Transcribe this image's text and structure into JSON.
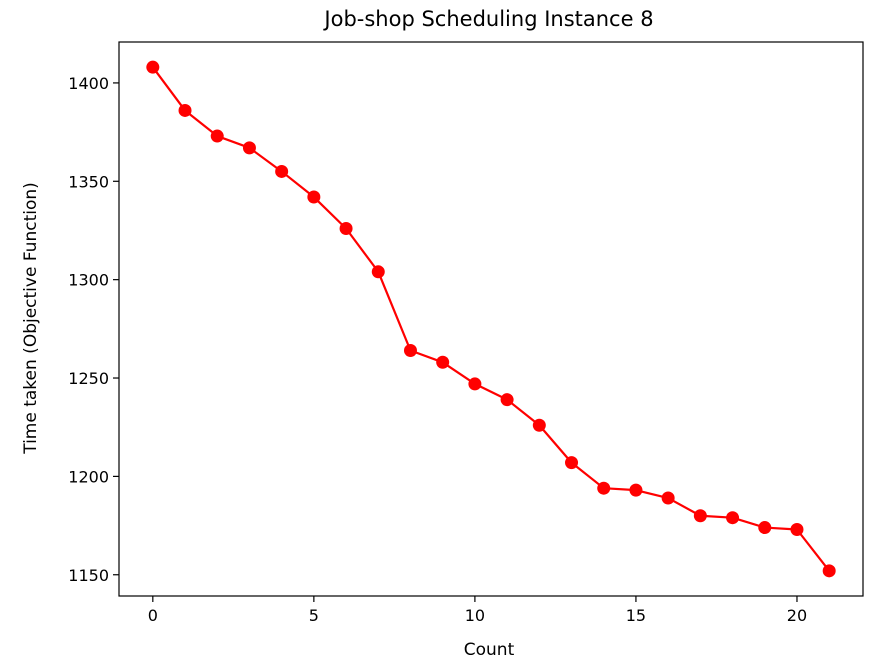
{
  "chart_data": {
    "type": "line",
    "title": "Job-shop Scheduling Instance 8",
    "xlabel": "Count",
    "ylabel": "Time taken (Objective Function)",
    "x": [
      0,
      1,
      2,
      3,
      4,
      5,
      6,
      7,
      8,
      9,
      10,
      11,
      12,
      13,
      14,
      15,
      16,
      17,
      18,
      19,
      20,
      21
    ],
    "series": [
      {
        "values": [
          1408,
          1386,
          1373,
          1367,
          1355,
          1342,
          1326,
          1304,
          1264,
          1258,
          1247,
          1239,
          1226,
          1207,
          1194,
          1193,
          1189,
          1180,
          1179,
          1174,
          1173,
          1152
        ],
        "color": "#ff0000",
        "marker": "circle"
      }
    ],
    "xlim": [
      -1.05,
      22.05
    ],
    "ylim": [
      1139.2,
      1420.8
    ],
    "xticks": [
      0,
      5,
      10,
      15,
      20
    ],
    "yticks": [
      1150,
      1200,
      1250,
      1300,
      1350,
      1400
    ],
    "grid": false
  }
}
